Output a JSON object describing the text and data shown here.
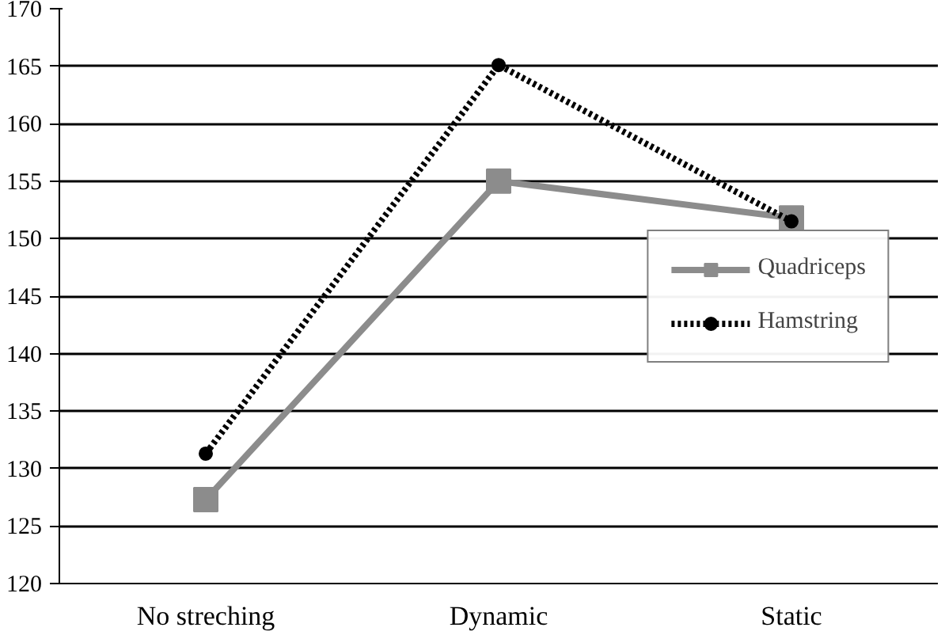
{
  "chart_data": {
    "type": "line",
    "categories": [
      "No streching",
      "Dynamic",
      "Static"
    ],
    "series": [
      {
        "name": "Quadriceps",
        "color": "#8c8c8c",
        "values": [
          127.3,
          155.0,
          151.8
        ],
        "marker": "square",
        "line_style": "solid"
      },
      {
        "name": "Hamstring",
        "color": "#000000",
        "values": [
          131.3,
          165.1,
          151.5
        ],
        "marker": "circle",
        "line_style": "dotted"
      }
    ],
    "ylim": [
      120,
      170
    ],
    "yticks": [
      120,
      125,
      130,
      135,
      140,
      145,
      150,
      155,
      160,
      165,
      170
    ],
    "grid": "y",
    "legend": "right"
  }
}
